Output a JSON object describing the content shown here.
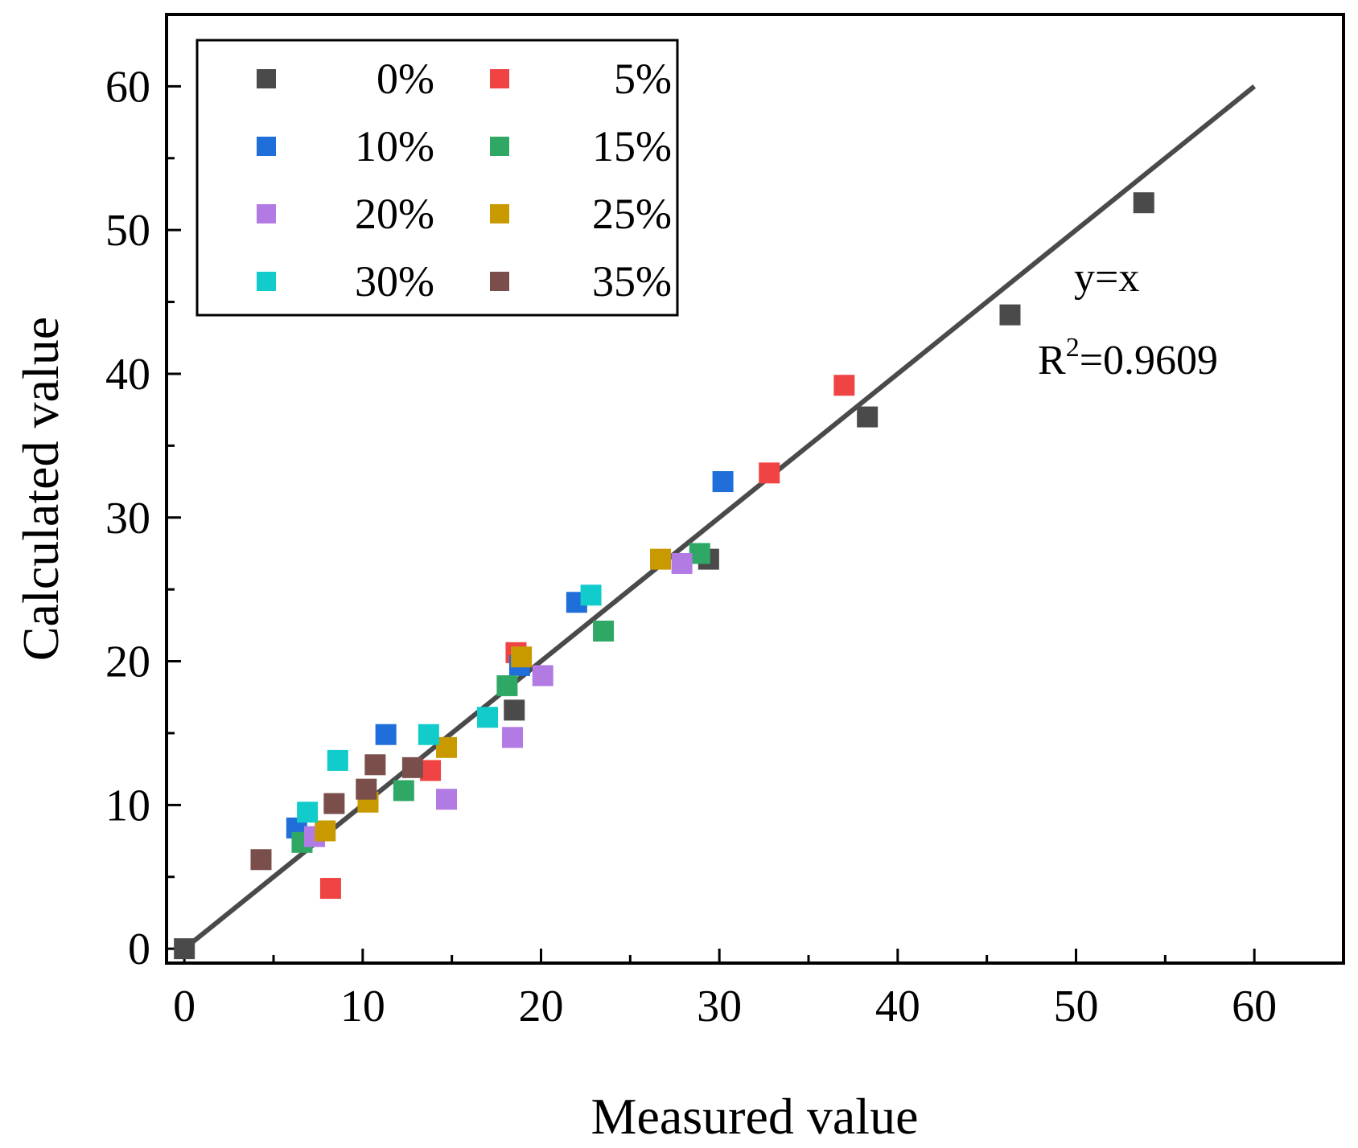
{
  "chart_data": {
    "type": "scatter",
    "title": "",
    "xlabel": "Measured value",
    "ylabel": "Calculated value",
    "xlim": [
      -1,
      65
    ],
    "ylim": [
      -1,
      65
    ],
    "xticks": [
      0,
      10,
      20,
      30,
      40,
      50,
      60
    ],
    "yticks": [
      0,
      10,
      20,
      30,
      40,
      50,
      60
    ],
    "legend_position": "top-left",
    "fit_line": {
      "label": "y=x",
      "from": [
        0,
        0
      ],
      "to": [
        60,
        60
      ],
      "color": "#4a4a4a"
    },
    "annotation": {
      "r2_prefix": "R",
      "r2_sup": "2",
      "r2_value": "=0.9609"
    },
    "series": [
      {
        "name": "0%",
        "color": "#4a4a4a",
        "points": [
          [
            0,
            0
          ],
          [
            18.5,
            16.6
          ],
          [
            29.4,
            27.1
          ],
          [
            38.3,
            37.0
          ],
          [
            46.3,
            44.1
          ],
          [
            53.8,
            51.9
          ]
        ]
      },
      {
        "name": "5%",
        "color": "#f04343",
        "points": [
          [
            8.2,
            4.2
          ],
          [
            13.8,
            12.4
          ],
          [
            18.6,
            20.6
          ],
          [
            32.8,
            33.1
          ],
          [
            37.0,
            39.2
          ]
        ]
      },
      {
        "name": "10%",
        "color": "#1f6ed9",
        "points": [
          [
            6.3,
            8.4
          ],
          [
            11.3,
            14.9
          ],
          [
            18.8,
            19.7
          ],
          [
            22.0,
            24.1
          ],
          [
            30.2,
            32.5
          ]
        ]
      },
      {
        "name": "15%",
        "color": "#2fa866",
        "points": [
          [
            6.6,
            7.4
          ],
          [
            12.3,
            11.0
          ],
          [
            18.1,
            18.3
          ],
          [
            23.5,
            22.1
          ],
          [
            28.9,
            27.5
          ]
        ]
      },
      {
        "name": "20%",
        "color": "#b27ae3",
        "points": [
          [
            7.3,
            7.8
          ],
          [
            14.7,
            10.4
          ],
          [
            18.4,
            14.7
          ],
          [
            20.1,
            19.0
          ],
          [
            27.9,
            26.8
          ]
        ]
      },
      {
        "name": "25%",
        "color": "#c99a00",
        "points": [
          [
            7.9,
            8.2
          ],
          [
            10.3,
            10.2
          ],
          [
            14.7,
            14.0
          ],
          [
            18.9,
            20.3
          ],
          [
            26.7,
            27.1
          ]
        ]
      },
      {
        "name": "30%",
        "color": "#12cccc",
        "points": [
          [
            6.9,
            9.5
          ],
          [
            8.6,
            13.1
          ],
          [
            13.7,
            14.9
          ],
          [
            17.0,
            16.1
          ],
          [
            22.8,
            24.6
          ]
        ]
      },
      {
        "name": "35%",
        "color": "#7a4f4b",
        "points": [
          [
            4.3,
            6.2
          ],
          [
            8.4,
            10.1
          ],
          [
            10.2,
            11.1
          ],
          [
            10.7,
            12.8
          ],
          [
            12.8,
            12.6
          ]
        ]
      }
    ]
  }
}
